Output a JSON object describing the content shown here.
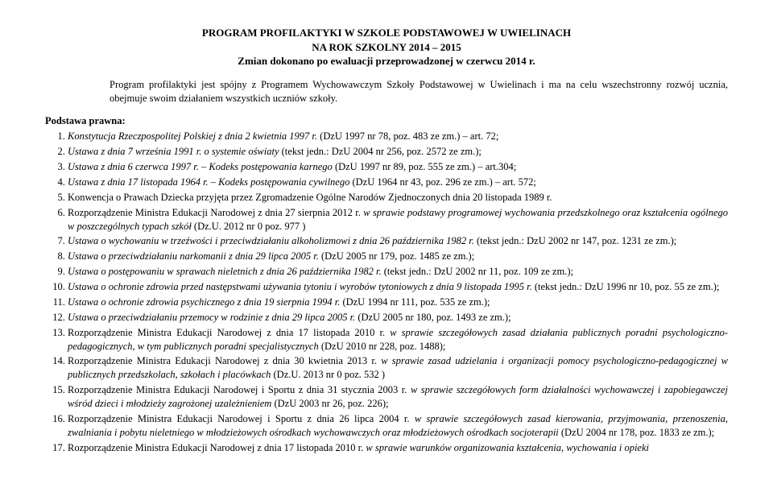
{
  "title_lines": [
    "PROGRAM PROFILAKTYKI W SZKOLE PODSTAWOWEJ W UWIELINACH",
    "NA ROK SZKOLNY 2014 – 2015",
    "Zmian dokonano po ewaluacji przeprowadzonej w czerwcu 2014 r."
  ],
  "intro": "Program profilaktyki jest spójny z Programem Wychowawczym Szkoły Podstawowej w Uwielinach i ma na celu wszechstronny rozwój ucznia, obejmuje swoim działaniem wszystkich uczniów szkoły.",
  "basis_label": "Podstawa prawna:",
  "items": [
    {
      "pre_i": "",
      "i": "Konstytucja Rzeczpospolitej Polskiej z dnia 2 kwietnia 1997 r.",
      "post": " (DzU 1997 nr 78, poz. 483 ze zm.) – art. 72;"
    },
    {
      "pre_i": "",
      "i": "Ustawa z dnia 7 września 1991 r. o systemie oświaty",
      "post": " (tekst jedn.: DzU 2004 nr 256, poz. 2572 ze zm.);"
    },
    {
      "pre_i": "",
      "i": "Ustawa z dnia 6 czerwca 1997 r. – Kodeks postępowania karnego",
      "post": " (DzU 1997 nr 89, poz. 555 ze zm.) – art.304;"
    },
    {
      "pre_i": "",
      "i": "Ustawa z dnia 17 listopada 1964 r. – Kodeks postępowania cywilnego",
      "post": " (DzU 1964 nr 43, poz. 296 ze zm.) – art. 572;"
    },
    {
      "pre_i": "Konwencja o Prawach Dziecka przyjęta przez Zgromadzenie Ogólne Narodów Zjednoczonych dnia 20 listopada 1989 r.",
      "i": "",
      "post": ""
    },
    {
      "pre_i": "Rozporządzenie Ministra Edukacji Narodowej z dnia 27 sierpnia 2012 r. ",
      "i": "w sprawie podstawy programowej wychowania przedszkolnego oraz kształcenia ogólnego w poszczególnych typach szkół",
      "post": " (Dz.U. 2012 nr 0 poz. 977 )"
    },
    {
      "pre_i": "",
      "i": "Ustawa o wychowaniu w trzeźwości i przeciwdziałaniu alkoholizmowi z dnia 26 października 1982 r.",
      "post": " (tekst jedn.: DzU 2002 nr 147, poz. 1231 ze zm.);"
    },
    {
      "pre_i": "",
      "i": "Ustawa o przeciwdziałaniu narkomanii z dnia 29 lipca 2005 r.",
      "post": " (DzU 2005 nr 179, poz. 1485 ze zm.);"
    },
    {
      "pre_i": "",
      "i": "Ustawa o postępowaniu w sprawach nieletnich z dnia 26 października 1982 r.",
      "post": " (tekst jedn.: DzU 2002 nr 11, poz. 109 ze zm.);"
    },
    {
      "pre_i": "",
      "i": "Ustawa o ochronie zdrowia przed następstwami używania tytoniu i wyrobów tytoniowych z dnia 9 listopada 1995 r.",
      "post": " (tekst jedn.: DzU 1996 nr 10, poz. 55 ze zm.);"
    },
    {
      "pre_i": "",
      "i": "Ustawa o ochronie zdrowia psychicznego z dnia 19 sierpnia 1994 r.",
      "post": " (DzU 1994 nr 111, poz. 535 ze zm.);"
    },
    {
      "pre_i": "",
      "i": "Ustawa o przeciwdziałaniu przemocy w rodzinie z dnia 29 lipca 2005 r.",
      "post": " (DzU 2005 nr 180, poz. 1493 ze zm.);"
    },
    {
      "pre_i": "Rozporządzenie Ministra Edukacji Narodowej z dnia 17 listopada 2010 r. ",
      "i": "w sprawie szczegółowych zasad działania publicznych poradni psychologiczno-pedagogicznych, w tym publicznych poradni specjalistycznych",
      "post": " (DzU 2010 nr 228, poz. 1488);"
    },
    {
      "pre_i": "Rozporządzenie Ministra Edukacji Narodowej z dnia 30 kwietnia 2013 r. ",
      "i": "w sprawie zasad udzielania i organizacji pomocy psychologiczno-pedagogicznej w publicznych przedszkolach, szkołach i placówkach",
      "post": " (Dz.U. 2013 nr 0 poz. 532 )"
    },
    {
      "pre_i": "Rozporządzenie Ministra Edukacji Narodowej i Sportu z dnia 31 stycznia 2003 r. ",
      "i": "w sprawie szczegółowych form działalności wychowawczej i zapobiegawczej wśród dzieci i młodzieży zagrożonej uzależnieniem",
      "post": " (DzU 2003 nr 26, poz. 226);"
    },
    {
      "pre_i": "Rozporządzenie Ministra Edukacji Narodowej i Sportu z dnia 26 lipca 2004 r. ",
      "i": "w sprawie szczegółowych zasad kierowania, przyjmowania, przenoszenia, zwalniania i pobytu nieletniego w młodzieżowych ośrodkach wychowawczych oraz młodzieżowych ośrodkach socjoterapii",
      "post": " (DzU 2004 nr 178, poz. 1833 ze zm.);"
    },
    {
      "pre_i": "Rozporządzenie Ministra Edukacji Narodowej z dnia 17 listopada 2010 r. ",
      "i": "w sprawie warunków organizowania kształcenia, wychowania i opieki",
      "post": ""
    }
  ]
}
